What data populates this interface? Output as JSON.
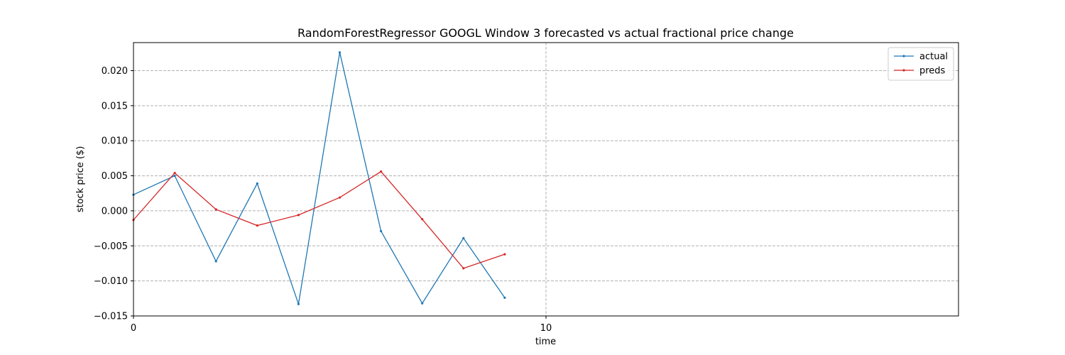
{
  "chart_data": {
    "type": "line",
    "title": "RandomForestRegressor GOOGL Window 3 forecasted vs actual fractional price change",
    "xlabel": "time",
    "ylabel": "stock price ($)",
    "xlim": [
      0,
      20
    ],
    "ylim": [
      -0.015,
      0.024
    ],
    "xticks": [
      0,
      10
    ],
    "xtick_labels": [
      "0",
      "10"
    ],
    "yticks": [
      -0.015,
      -0.01,
      -0.005,
      0.0,
      0.005,
      0.01,
      0.015,
      0.02
    ],
    "ytick_labels": [
      "−0.015",
      "−0.010",
      "−0.005",
      "0.000",
      "0.005",
      "0.010",
      "0.015",
      "0.020"
    ],
    "grid": true,
    "legend_position": "top-right",
    "x": [
      0,
      1,
      2,
      3,
      4,
      5,
      6,
      7,
      8,
      9
    ],
    "series": [
      {
        "name": "actual",
        "color": "#1f77b4",
        "values": [
          0.0023,
          0.005,
          -0.0072,
          0.0039,
          -0.0133,
          0.0226,
          -0.0029,
          -0.0132,
          -0.0039,
          -0.0124
        ]
      },
      {
        "name": "preds",
        "color": "#d62728",
        "values": [
          -0.0013,
          0.0054,
          0.0002,
          -0.0021,
          -0.0006,
          0.0019,
          0.0056,
          -0.0012,
          -0.0082,
          -0.0062
        ]
      }
    ]
  }
}
